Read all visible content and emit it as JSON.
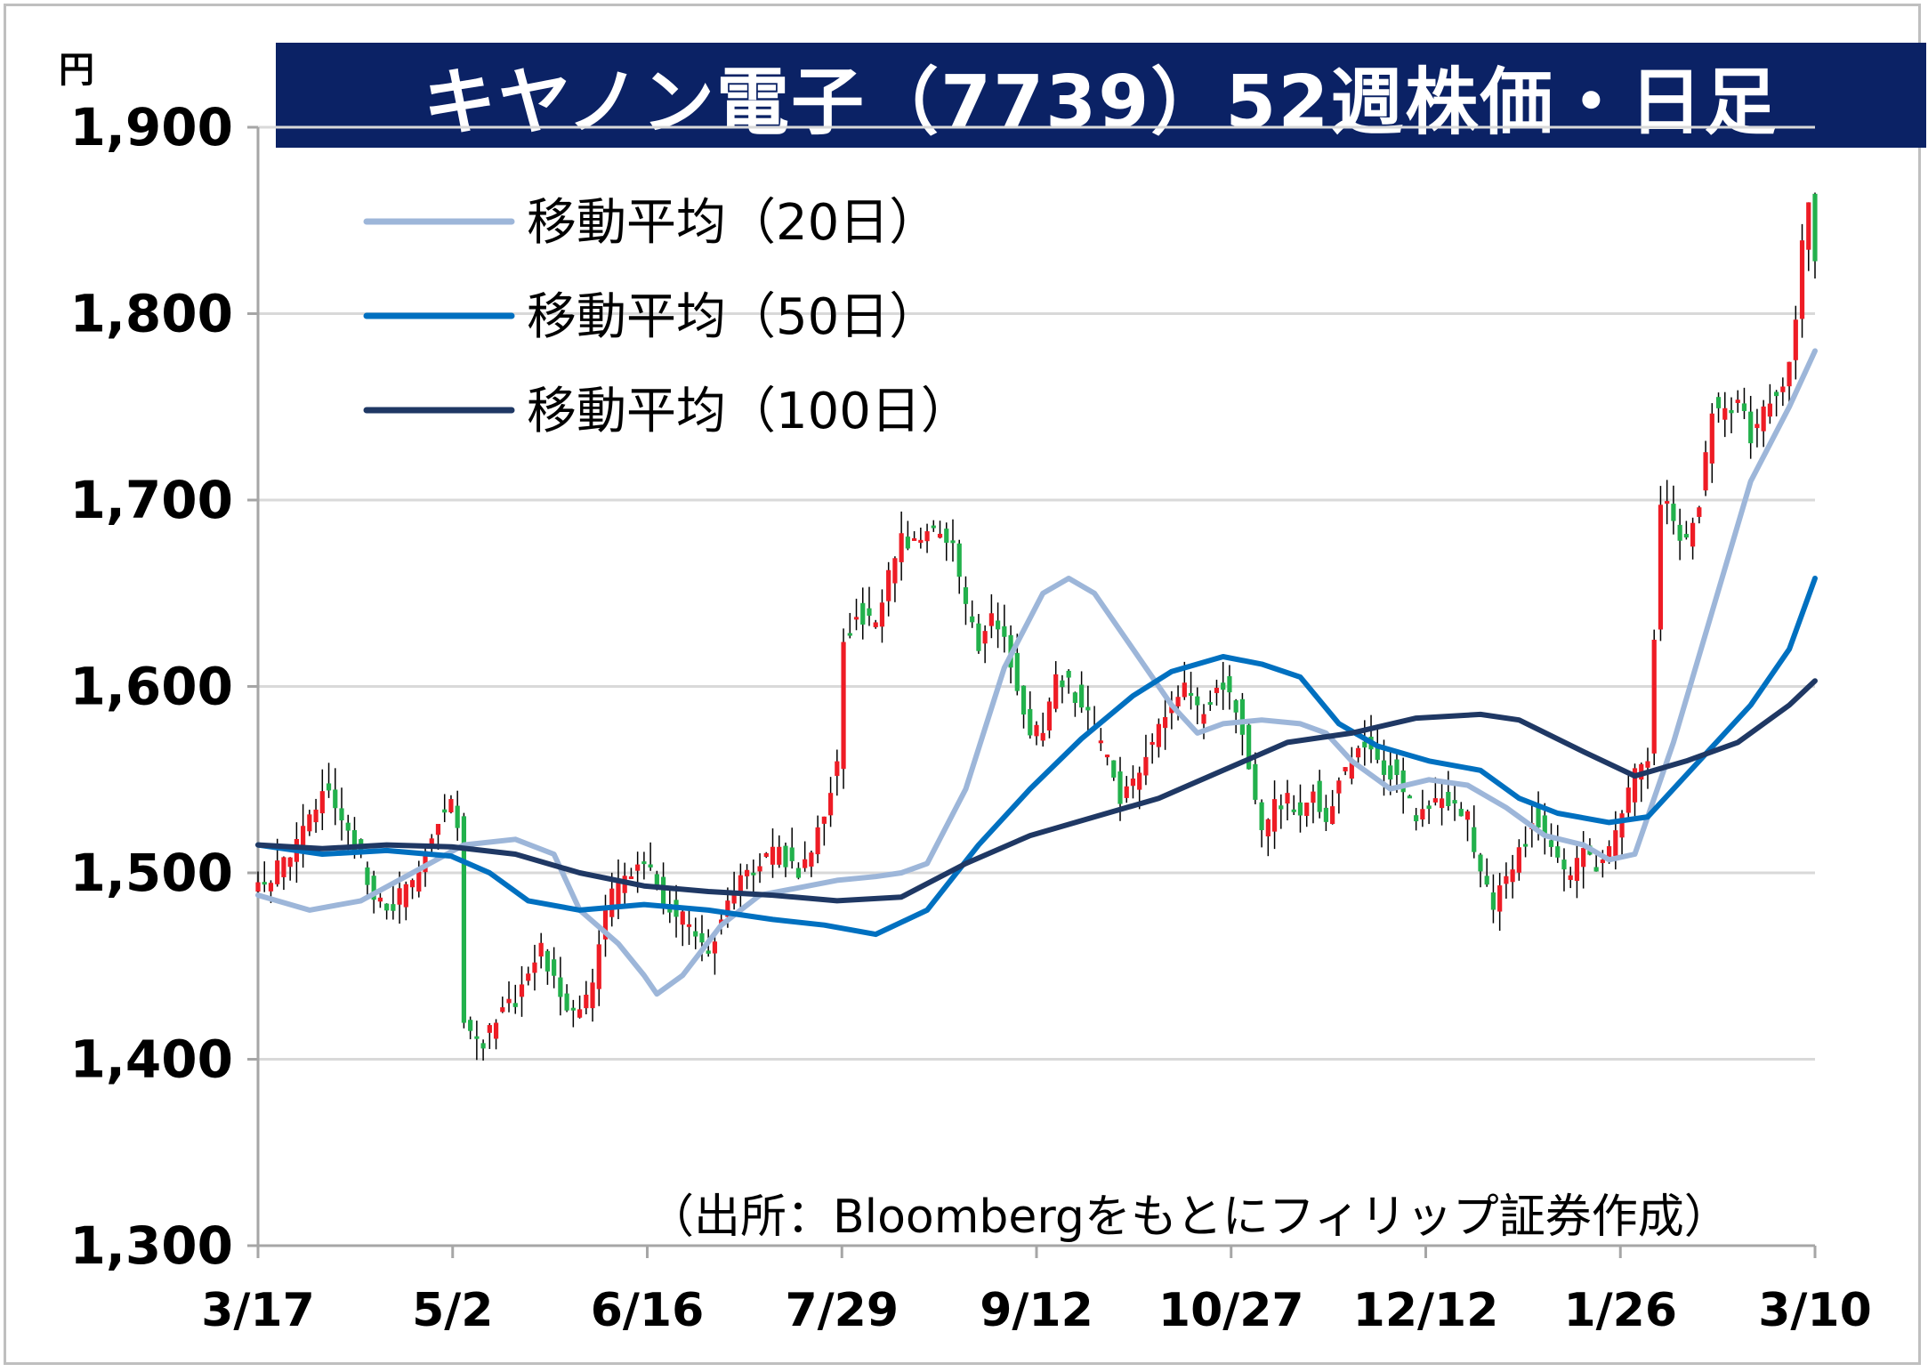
{
  "title": "キヤノン電子（7739）52週株価・日足",
  "y_unit": "円",
  "source": "（出所：Bloombergをもとにフィリップ証券作成）",
  "colors": {
    "title_bg": "#0b2265",
    "up": "#ee1c25",
    "down": "#22b14c",
    "ma20": "#9db6d9",
    "ma50": "#0070c0",
    "ma100": "#1f3864",
    "grid": "#d9d9d9",
    "axis": "#a6a6a6"
  },
  "chart_data": {
    "type": "candlestick",
    "title": "キヤノン電子（7739）52週株価・日足",
    "ylabel": "円",
    "ylim": [
      1300,
      1900
    ],
    "y_ticks": [
      "1,300",
      "1,400",
      "1,500",
      "1,600",
      "1,700",
      "1,800",
      "1,900"
    ],
    "x_ticks": [
      "3/17",
      "5/2",
      "6/16",
      "7/29",
      "9/12",
      "10/27",
      "12/12",
      "1/26",
      "3/10"
    ],
    "grid": true,
    "legend_position": "top-left",
    "series": [
      {
        "name": "移動平均（20日）",
        "color": "#9db6d9",
        "values": [
          [
            0,
            1488
          ],
          [
            8,
            1480
          ],
          [
            16,
            1485
          ],
          [
            24,
            1500
          ],
          [
            32,
            1515
          ],
          [
            40,
            1518
          ],
          [
            46,
            1510
          ],
          [
            50,
            1480
          ],
          [
            56,
            1462
          ],
          [
            60,
            1445
          ],
          [
            62,
            1435
          ],
          [
            66,
            1445
          ],
          [
            72,
            1472
          ],
          [
            78,
            1488
          ],
          [
            84,
            1492
          ],
          [
            90,
            1496
          ],
          [
            96,
            1498
          ],
          [
            100,
            1500
          ],
          [
            104,
            1505
          ],
          [
            110,
            1545
          ],
          [
            116,
            1610
          ],
          [
            122,
            1650
          ],
          [
            126,
            1658
          ],
          [
            130,
            1650
          ],
          [
            136,
            1620
          ],
          [
            142,
            1590
          ],
          [
            146,
            1575
          ],
          [
            150,
            1580
          ],
          [
            156,
            1582
          ],
          [
            162,
            1580
          ],
          [
            166,
            1575
          ],
          [
            170,
            1560
          ],
          [
            176,
            1545
          ],
          [
            182,
            1550
          ],
          [
            188,
            1547
          ],
          [
            194,
            1535
          ],
          [
            200,
            1520
          ],
          [
            206,
            1515
          ],
          [
            210,
            1507
          ],
          [
            214,
            1510
          ],
          [
            220,
            1570
          ],
          [
            226,
            1640
          ],
          [
            232,
            1710
          ],
          [
            238,
            1750
          ],
          [
            242,
            1780
          ]
        ]
      },
      {
        "name": "移動平均（50日）",
        "color": "#0070c0",
        "values": [
          [
            0,
            1515
          ],
          [
            10,
            1510
          ],
          [
            20,
            1512
          ],
          [
            30,
            1509
          ],
          [
            36,
            1500
          ],
          [
            42,
            1485
          ],
          [
            50,
            1480
          ],
          [
            60,
            1483
          ],
          [
            70,
            1480
          ],
          [
            80,
            1475
          ],
          [
            88,
            1472
          ],
          [
            96,
            1467
          ],
          [
            104,
            1480
          ],
          [
            112,
            1515
          ],
          [
            120,
            1545
          ],
          [
            128,
            1572
          ],
          [
            136,
            1595
          ],
          [
            142,
            1608
          ],
          [
            150,
            1616
          ],
          [
            156,
            1612
          ],
          [
            162,
            1605
          ],
          [
            168,
            1580
          ],
          [
            174,
            1568
          ],
          [
            182,
            1560
          ],
          [
            190,
            1555
          ],
          [
            196,
            1540
          ],
          [
            202,
            1532
          ],
          [
            210,
            1527
          ],
          [
            216,
            1530
          ],
          [
            224,
            1560
          ],
          [
            232,
            1590
          ],
          [
            238,
            1620
          ],
          [
            242,
            1658
          ]
        ]
      },
      {
        "name": "移動平均（100日）",
        "color": "#1f3864",
        "values": [
          [
            0,
            1515
          ],
          [
            10,
            1513
          ],
          [
            20,
            1515
          ],
          [
            30,
            1514
          ],
          [
            40,
            1510
          ],
          [
            50,
            1500
          ],
          [
            60,
            1493
          ],
          [
            70,
            1490
          ],
          [
            80,
            1488
          ],
          [
            90,
            1485
          ],
          [
            100,
            1487
          ],
          [
            110,
            1505
          ],
          [
            120,
            1520
          ],
          [
            130,
            1530
          ],
          [
            140,
            1540
          ],
          [
            150,
            1555
          ],
          [
            160,
            1570
          ],
          [
            170,
            1575
          ],
          [
            180,
            1583
          ],
          [
            190,
            1585
          ],
          [
            196,
            1582
          ],
          [
            206,
            1565
          ],
          [
            214,
            1552
          ],
          [
            222,
            1560
          ],
          [
            230,
            1570
          ],
          [
            238,
            1590
          ],
          [
            242,
            1603
          ]
        ]
      }
    ],
    "candles_generation": "approximate daily OHLC reconstructed by script from close anchors",
    "close_anchors": [
      [
        0,
        1492
      ],
      [
        4,
        1505
      ],
      [
        8,
        1530
      ],
      [
        10,
        1545
      ],
      [
        12,
        1538
      ],
      [
        14,
        1520
      ],
      [
        16,
        1505
      ],
      [
        18,
        1485
      ],
      [
        20,
        1480
      ],
      [
        24,
        1495
      ],
      [
        26,
        1515
      ],
      [
        28,
        1530
      ],
      [
        30,
        1535
      ],
      [
        31,
        1525
      ],
      [
        32,
        1418
      ],
      [
        35,
        1410
      ],
      [
        38,
        1425
      ],
      [
        40,
        1430
      ],
      [
        42,
        1448
      ],
      [
        44,
        1460
      ],
      [
        46,
        1440
      ],
      [
        48,
        1430
      ],
      [
        50,
        1425
      ],
      [
        52,
        1440
      ],
      [
        54,
        1480
      ],
      [
        56,
        1495
      ],
      [
        58,
        1498
      ],
      [
        60,
        1510
      ],
      [
        62,
        1495
      ],
      [
        64,
        1480
      ],
      [
        66,
        1475
      ],
      [
        68,
        1462
      ],
      [
        70,
        1455
      ],
      [
        72,
        1478
      ],
      [
        74,
        1495
      ],
      [
        76,
        1500
      ],
      [
        78,
        1505
      ],
      [
        80,
        1510
      ],
      [
        82,
        1508
      ],
      [
        84,
        1502
      ],
      [
        86,
        1515
      ],
      [
        88,
        1535
      ],
      [
        90,
        1560
      ],
      [
        91,
        1625
      ],
      [
        93,
        1640
      ],
      [
        96,
        1630
      ],
      [
        98,
        1660
      ],
      [
        100,
        1680
      ],
      [
        102,
        1675
      ],
      [
        104,
        1685
      ],
      [
        106,
        1680
      ],
      [
        108,
        1675
      ],
      [
        110,
        1640
      ],
      [
        112,
        1622
      ],
      [
        114,
        1640
      ],
      [
        116,
        1630
      ],
      [
        118,
        1600
      ],
      [
        120,
        1570
      ],
      [
        122,
        1580
      ],
      [
        124,
        1605
      ],
      [
        126,
        1600
      ],
      [
        128,
        1590
      ],
      [
        130,
        1575
      ],
      [
        132,
        1560
      ],
      [
        134,
        1540
      ],
      [
        136,
        1550
      ],
      [
        138,
        1565
      ],
      [
        140,
        1580
      ],
      [
        142,
        1590
      ],
      [
        144,
        1600
      ],
      [
        146,
        1585
      ],
      [
        148,
        1595
      ],
      [
        150,
        1600
      ],
      [
        152,
        1590
      ],
      [
        154,
        1560
      ],
      [
        156,
        1520
      ],
      [
        158,
        1535
      ],
      [
        160,
        1540
      ],
      [
        162,
        1535
      ],
      [
        164,
        1545
      ],
      [
        166,
        1530
      ],
      [
        168,
        1550
      ],
      [
        170,
        1560
      ],
      [
        172,
        1570
      ],
      [
        174,
        1560
      ],
      [
        176,
        1555
      ],
      [
        178,
        1545
      ],
      [
        180,
        1528
      ],
      [
        182,
        1535
      ],
      [
        184,
        1540
      ],
      [
        186,
        1535
      ],
      [
        188,
        1530
      ],
      [
        190,
        1500
      ],
      [
        192,
        1485
      ],
      [
        194,
        1495
      ],
      [
        196,
        1510
      ],
      [
        198,
        1530
      ],
      [
        200,
        1520
      ],
      [
        202,
        1505
      ],
      [
        204,
        1498
      ],
      [
        206,
        1510
      ],
      [
        208,
        1505
      ],
      [
        210,
        1510
      ],
      [
        212,
        1530
      ],
      [
        214,
        1555
      ],
      [
        216,
        1560
      ],
      [
        217,
        1630
      ],
      [
        218,
        1700
      ],
      [
        220,
        1690
      ],
      [
        222,
        1675
      ],
      [
        224,
        1700
      ],
      [
        226,
        1750
      ],
      [
        228,
        1745
      ],
      [
        230,
        1755
      ],
      [
        232,
        1735
      ],
      [
        234,
        1750
      ],
      [
        236,
        1760
      ],
      [
        238,
        1770
      ],
      [
        239,
        1800
      ],
      [
        240,
        1840
      ],
      [
        241,
        1860
      ],
      [
        242,
        1828
      ]
    ],
    "n_days": 243
  }
}
